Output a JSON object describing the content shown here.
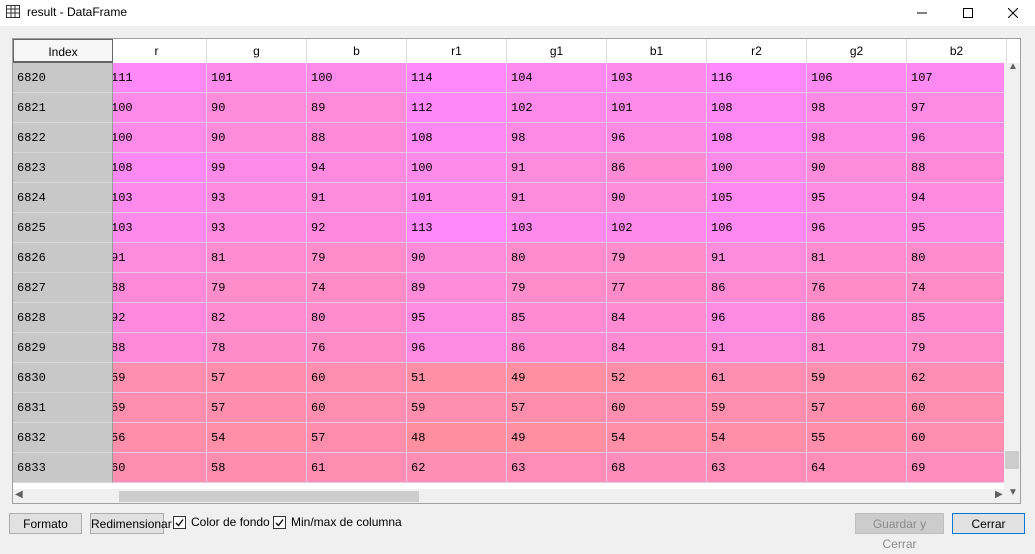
{
  "window": {
    "title": "result - DataFrame",
    "controls": {
      "minimize": "—",
      "maximize": "☐",
      "close": "✕"
    }
  },
  "table": {
    "index_header": "Index",
    "columns": [
      "r",
      "g",
      "b",
      "r1",
      "g1",
      "b1",
      "r2",
      "g2",
      "b2"
    ],
    "rows": [
      {
        "index": "6820",
        "values": [
          "111",
          "101",
          "100",
          "114",
          "104",
          "103",
          "116",
          "106",
          "107"
        ]
      },
      {
        "index": "6821",
        "values": [
          "100",
          "90",
          "89",
          "112",
          "102",
          "101",
          "108",
          "98",
          "97"
        ]
      },
      {
        "index": "6822",
        "values": [
          "100",
          "90",
          "88",
          "108",
          "98",
          "96",
          "108",
          "98",
          "96"
        ]
      },
      {
        "index": "6823",
        "values": [
          "108",
          "99",
          "94",
          "100",
          "91",
          "86",
          "100",
          "90",
          "88"
        ]
      },
      {
        "index": "6824",
        "values": [
          "103",
          "93",
          "91",
          "101",
          "91",
          "90",
          "105",
          "95",
          "94"
        ]
      },
      {
        "index": "6825",
        "values": [
          "103",
          "93",
          "92",
          "113",
          "103",
          "102",
          "106",
          "96",
          "95"
        ]
      },
      {
        "index": "6826",
        "values": [
          "91",
          "81",
          "79",
          "90",
          "80",
          "79",
          "91",
          "81",
          "80"
        ]
      },
      {
        "index": "6827",
        "values": [
          "88",
          "79",
          "74",
          "89",
          "79",
          "77",
          "86",
          "76",
          "74"
        ]
      },
      {
        "index": "6828",
        "values": [
          "92",
          "82",
          "80",
          "95",
          "85",
          "84",
          "96",
          "86",
          "85"
        ]
      },
      {
        "index": "6829",
        "values": [
          "88",
          "78",
          "76",
          "96",
          "86",
          "84",
          "91",
          "81",
          "79"
        ]
      },
      {
        "index": "6830",
        "values": [
          "59",
          "57",
          "60",
          "51",
          "49",
          "52",
          "61",
          "59",
          "62"
        ]
      },
      {
        "index": "6831",
        "values": [
          "59",
          "57",
          "60",
          "59",
          "57",
          "60",
          "59",
          "57",
          "60"
        ]
      },
      {
        "index": "6832",
        "values": [
          "56",
          "54",
          "57",
          "48",
          "49",
          "54",
          "54",
          "55",
          "60"
        ]
      },
      {
        "index": "6833",
        "values": [
          "60",
          "58",
          "61",
          "62",
          "63",
          "68",
          "63",
          "64",
          "69"
        ]
      }
    ],
    "color_low": "#ff8fa0",
    "color_high": "#ff88ff"
  },
  "buttons": {
    "formato": "Formato",
    "redimensionar": "Redimensionar",
    "guardar": "Guardar y Cerrar",
    "cerrar": "Cerrar"
  },
  "checkboxes": {
    "color_fondo": {
      "label": "Color de fondo",
      "checked": true
    },
    "minmax": {
      "label": "Min/max de columna",
      "checked": true
    }
  }
}
